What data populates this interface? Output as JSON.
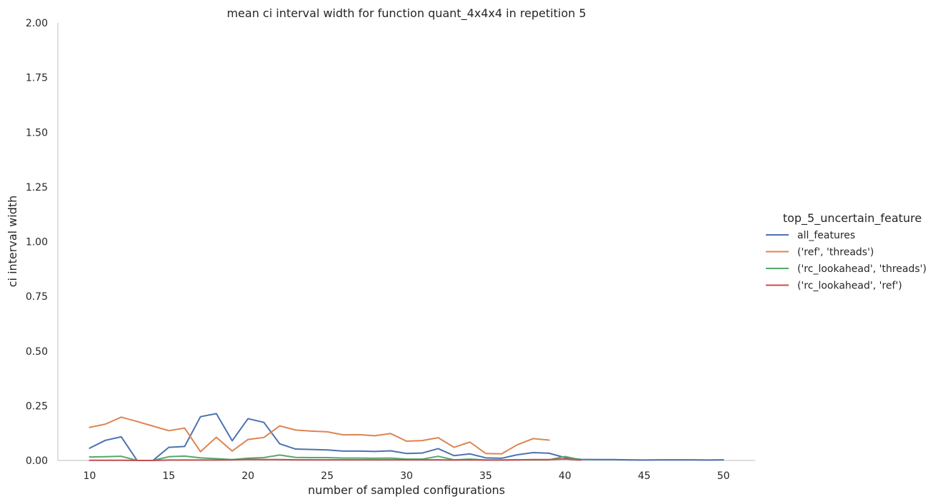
{
  "chart_data": {
    "type": "line",
    "title": "mean ci interval width for function quant_4x4x4 in repetition 5",
    "xlabel": "number of sampled configurations",
    "ylabel": "ci interval width",
    "xlim": [
      8,
      52
    ],
    "ylim": [
      0,
      2.0
    ],
    "xticks": [
      10,
      15,
      20,
      25,
      30,
      35,
      40,
      45,
      50
    ],
    "yticks": [
      0.0,
      0.25,
      0.5,
      0.75,
      1.0,
      1.25,
      1.5,
      1.75,
      2.0
    ],
    "ytick_labels": [
      "0.00",
      "0.25",
      "0.50",
      "0.75",
      "1.00",
      "1.25",
      "1.50",
      "1.75",
      "2.00"
    ],
    "grid": false,
    "legend": {
      "title": "top_5_uncertain_feature",
      "placement": "right"
    },
    "series": [
      {
        "name": "all_features",
        "color": "#4c72b0",
        "x": [
          10,
          11,
          12,
          13,
          14,
          15,
          16,
          17,
          18,
          19,
          20,
          21,
          22,
          23,
          24,
          25,
          26,
          27,
          28,
          29,
          30,
          31,
          32,
          33,
          34,
          35,
          36,
          37,
          38,
          39,
          40,
          41,
          42,
          43,
          44,
          45,
          46,
          47,
          48,
          49,
          50
        ],
        "y": [
          0.056,
          0.092,
          0.108,
          0.0,
          0.0,
          0.06,
          0.064,
          0.2,
          0.214,
          0.09,
          0.191,
          0.174,
          0.076,
          0.052,
          0.05,
          0.048,
          0.043,
          0.043,
          0.041,
          0.044,
          0.032,
          0.034,
          0.054,
          0.022,
          0.03,
          0.012,
          0.01,
          0.026,
          0.036,
          0.033,
          0.013,
          0.005,
          0.004,
          0.004,
          0.003,
          0.002,
          0.003,
          0.003,
          0.003,
          0.002,
          0.003
        ]
      },
      {
        "name": "('ref', 'threads')",
        "color": "#dd8452",
        "x": [
          10,
          11,
          12,
          13,
          14,
          15,
          16,
          17,
          18,
          19,
          20,
          21,
          22,
          23,
          24,
          25,
          26,
          27,
          28,
          29,
          30,
          31,
          32,
          33,
          34,
          35,
          36,
          37,
          38,
          39
        ],
        "y": [
          0.151,
          0.166,
          0.198,
          0.178,
          0.157,
          0.136,
          0.148,
          0.04,
          0.106,
          0.043,
          0.096,
          0.105,
          0.158,
          0.139,
          0.134,
          0.131,
          0.117,
          0.118,
          0.113,
          0.123,
          0.088,
          0.091,
          0.104,
          0.06,
          0.084,
          0.032,
          0.03,
          0.072,
          0.1,
          0.093
        ]
      },
      {
        "name": "('rc_lookahead', 'threads')",
        "color": "#55a868",
        "x": [
          10,
          11,
          12,
          13,
          14,
          15,
          16,
          17,
          18,
          19,
          20,
          21,
          22,
          23,
          24,
          25,
          26,
          27,
          28,
          29,
          30,
          31,
          32,
          33,
          34,
          35,
          36,
          37,
          38,
          39,
          40,
          41
        ],
        "y": [
          0.016,
          0.017,
          0.019,
          0.0,
          0.0,
          0.017,
          0.02,
          0.012,
          0.008,
          0.004,
          0.01,
          0.013,
          0.025,
          0.014,
          0.013,
          0.013,
          0.011,
          0.011,
          0.01,
          0.011,
          0.006,
          0.006,
          0.019,
          0.003,
          0.006,
          0.002,
          0.002,
          0.003,
          0.003,
          0.003,
          0.018,
          0.003
        ]
      },
      {
        "name": "('rc_lookahead', 'ref')",
        "color": "#c44e52",
        "x": [
          10,
          11,
          12,
          13,
          14,
          15,
          16,
          17,
          18,
          19,
          20,
          21,
          22,
          23,
          24,
          25,
          26,
          27,
          28,
          29,
          30,
          31,
          32,
          33,
          34,
          35,
          36,
          37,
          38,
          39,
          40,
          41
        ],
        "y": [
          0.001,
          0.001,
          0.001,
          0.0,
          0.0,
          0.002,
          0.002,
          0.002,
          0.002,
          0.003,
          0.005,
          0.004,
          0.004,
          0.003,
          0.003,
          0.003,
          0.003,
          0.003,
          0.003,
          0.003,
          0.003,
          0.003,
          0.003,
          0.002,
          0.003,
          0.002,
          0.002,
          0.003,
          0.004,
          0.004,
          0.007,
          0.002
        ]
      }
    ]
  }
}
